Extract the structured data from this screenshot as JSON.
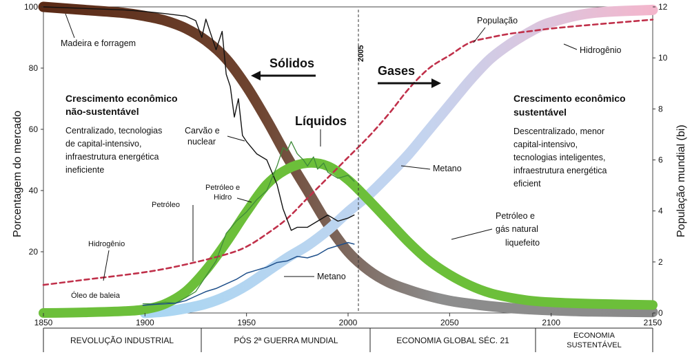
{
  "chart_data": {
    "type": "line",
    "xlim": [
      1850,
      2150
    ],
    "ylim": [
      0,
      100
    ],
    "y2lim": [
      0,
      12
    ],
    "xlabel": "",
    "ylabel": "Porcentagem do mercado",
    "y2label": "População mundial (bi)",
    "x_ticks": [
      "1850",
      "1900",
      "1950",
      "2000",
      "2050",
      "2100",
      "2150"
    ],
    "y_ticks": [
      "100",
      "80",
      "60",
      "40",
      "20"
    ],
    "y2_ticks": [
      "12",
      "10",
      "8",
      "6",
      "4",
      "2",
      "0"
    ],
    "marker_year": "2005",
    "eras": [
      "REVOLUÇÃO INDUSTRIAL",
      "PÓS 2ª GUERRA MUNDIAL",
      "ECONOMIA GLOBAL SÉC. 21",
      "ECONOMIA",
      "SUSTENTÁVEL"
    ],
    "series": [
      {
        "name": "Sólidos",
        "axis": "left",
        "style": "band",
        "x": [
          1850,
          1870,
          1890,
          1900,
          1910,
          1920,
          1930,
          1940,
          1950,
          1960,
          1970,
          1980,
          1990,
          2000,
          2010,
          2020,
          2030,
          2040,
          2050,
          2060,
          2070,
          2080,
          2090,
          2100,
          2120,
          2150
        ],
        "y": [
          100,
          99,
          98,
          97,
          95.5,
          93,
          89,
          83,
          74,
          63,
          51,
          40,
          29,
          20,
          14,
          10,
          7.5,
          5.5,
          4,
          3,
          2.2,
          1.6,
          1.2,
          0.9,
          0.5,
          0.3
        ]
      },
      {
        "name": "Líquidos",
        "axis": "left",
        "style": "band",
        "x": [
          1850,
          1870,
          1890,
          1900,
          1910,
          1920,
          1930,
          1940,
          1950,
          1960,
          1970,
          1980,
          1990,
          2000,
          2010,
          2020,
          2030,
          2040,
          2050,
          2060,
          2070,
          2080,
          2090,
          2100,
          2120,
          2150
        ],
        "y": [
          0,
          0.2,
          0.6,
          1.2,
          3,
          7,
          14,
          23,
          33,
          42,
          47,
          49,
          48,
          43.5,
          37,
          30,
          23,
          17,
          12.5,
          9,
          6.5,
          5,
          4,
          3.5,
          3,
          2.6
        ]
      },
      {
        "name": "Gases",
        "axis": "left",
        "style": "band",
        "x": [
          1900,
          1910,
          1920,
          1930,
          1940,
          1950,
          1960,
          1970,
          1980,
          1990,
          2000,
          2010,
          2020,
          2030,
          2040,
          2050,
          2060,
          2070,
          2080,
          2090,
          2100,
          2120,
          2150
        ],
        "y": [
          0,
          0.5,
          1.5,
          3,
          5.5,
          9,
          13.5,
          18,
          22,
          27,
          33,
          38.5,
          45,
          52,
          60,
          68,
          76,
          83,
          88,
          92,
          95,
          98,
          99
        ]
      },
      {
        "name": "População",
        "axis": "right",
        "style": "dashed",
        "x": [
          1850,
          1870,
          1900,
          1920,
          1940,
          1950,
          1960,
          1970,
          1980,
          1990,
          2000,
          2010,
          2020,
          2030,
          2040,
          2050,
          2060,
          2070,
          2080,
          2090,
          2100,
          2120,
          2150
        ],
        "y": [
          1.1,
          1.3,
          1.6,
          1.9,
          2.3,
          2.6,
          3.1,
          3.7,
          4.5,
          5.3,
          6.1,
          6.9,
          7.8,
          8.8,
          9.6,
          10.1,
          10.6,
          10.8,
          10.95,
          11.05,
          11.15,
          11.3,
          11.5
        ]
      },
      {
        "name": "Madeira e forragem",
        "axis": "left",
        "style": "thin",
        "x": [
          1850,
          1870,
          1890,
          1900,
          1910,
          1920,
          1925,
          1928,
          1930,
          1935,
          1938,
          1940,
          1942,
          1944,
          1946,
          1948,
          1950,
          1955,
          1960,
          1965,
          1968,
          1972,
          1975,
          1980,
          1985,
          1990,
          1995,
          2000,
          2003
        ],
        "y": [
          100,
          99.5,
          99,
          98.5,
          97.8,
          97,
          95.5,
          90,
          96,
          86,
          92,
          78,
          74,
          64,
          70,
          58,
          56,
          52,
          50,
          42,
          34,
          27,
          28,
          28,
          30,
          32,
          30,
          31,
          32
        ]
      },
      {
        "name": "Petróleo",
        "axis": "left",
        "style": "thin",
        "x": [
          1899,
          1905,
          1910,
          1915,
          1920,
          1925,
          1930,
          1935,
          1940,
          1945,
          1950,
          1955,
          1960,
          1965,
          1968,
          1970,
          1972,
          1975,
          1978,
          1980,
          1983,
          1985,
          1988,
          1990,
          1995,
          2000,
          2003
        ],
        "y": [
          3,
          3,
          3.5,
          3.2,
          5,
          7,
          12,
          17,
          26,
          30,
          33,
          37,
          40,
          48,
          54,
          53,
          56,
          52,
          50,
          48,
          51,
          47,
          49,
          46,
          44,
          45,
          43
        ]
      },
      {
        "name": "Metano",
        "axis": "left",
        "style": "thin",
        "x": [
          1899,
          1905,
          1910,
          1915,
          1920,
          1925,
          1930,
          1935,
          1940,
          1945,
          1950,
          1955,
          1960,
          1965,
          1970,
          1975,
          1980,
          1985,
          1990,
          1995,
          2000,
          2003
        ],
        "y": [
          2.5,
          2.8,
          3,
          3.2,
          4,
          5.5,
          7,
          8,
          9.5,
          11,
          13,
          14,
          15,
          16.5,
          17,
          18.5,
          18,
          19,
          21,
          22,
          23,
          22.5
        ]
      }
    ],
    "labels": {
      "solidos": "Sólidos",
      "liquidos": "Líquidos",
      "gases": "Gases",
      "madeira": "Madeira e forragem",
      "carvao1": "Carvão e",
      "carvao2": "nuclear",
      "petroleo": "Petróleo",
      "pet_hidro1": "Petróleo e",
      "pet_hidro2": "Hidro",
      "hidrogenio_left": "Hidrogênio",
      "oleo": "Óleo de baleia",
      "metano_low": "Metano",
      "metano_mid": "Metano",
      "populacao": "População",
      "hidrogenio_right": "Hidrogênio",
      "gnl1": "Petróleo e",
      "gnl2": "gás natural",
      "gnl3": "liquefeito"
    },
    "left_text": {
      "title1": "Crescimento econômico",
      "title2": "não-sustentável",
      "line1": "Centralizado, tecnologias",
      "line2": "de capital-intensivo,",
      "line3": "infraestrutura energética",
      "line4": "ineficiente"
    },
    "right_text": {
      "title1": "Crescimento econômico",
      "title2": "sustentável",
      "line1": "Descentralizado, menor",
      "line2": "capital-intensivo,",
      "line3": "tecnologias inteligentes,",
      "line4": "infraestrutura energética",
      "line5": "eficient"
    },
    "colors": {
      "solidos_start": "#5a2a16",
      "solidos_end": "#8a8a8a",
      "liquidos": "#6cbf3a",
      "gases_start": "#a9d6f2",
      "gases_end": "#f3b6cc",
      "populacao": "#c0304a",
      "carvao": "#111111",
      "petroleo": "#3f8a3a",
      "metano": "#1e4f8a"
    }
  }
}
